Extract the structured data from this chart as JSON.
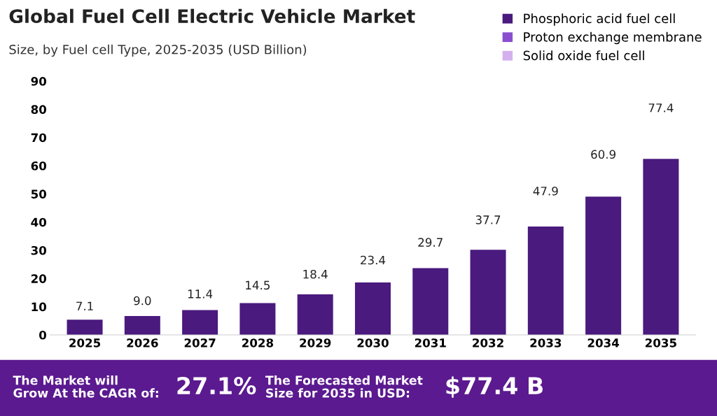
{
  "chart_data": {
    "type": "bar",
    "title": "Global Fuel Cell Electric Vehicle Market",
    "subtitle": "Size, by Fuel cell Type, 2025-2035 (USD Billion)",
    "categories": [
      "2025",
      "2026",
      "2027",
      "2028",
      "2029",
      "2030",
      "2031",
      "2032",
      "2033",
      "2034",
      "2035"
    ],
    "series": [
      {
        "name": "Phosphoric acid fuel cell",
        "color": "#4a1a7e",
        "values": [
          5.4,
          6.7,
          8.8,
          11.3,
          14.4,
          18.6,
          23.7,
          30.2,
          38.4,
          49.0,
          62.4
        ]
      },
      {
        "name": "Proton exchange membrane",
        "color": "#8a4fd0",
        "values": [
          null,
          null,
          null,
          null,
          null,
          null,
          null,
          null,
          null,
          null,
          null
        ]
      },
      {
        "name": "Solid oxide fuel cell",
        "color": "#d4b0ee",
        "values": [
          null,
          null,
          null,
          null,
          null,
          null,
          null,
          null,
          null,
          null,
          null
        ]
      }
    ],
    "ylim": [
      0,
      90
    ],
    "yticks": [
      0,
      10,
      20,
      30,
      40,
      50,
      60,
      70,
      80,
      90
    ],
    "grid": false,
    "legend": "top right",
    "annotations": [
      "7.1",
      "9.0",
      "11.4",
      "14.5",
      "18.4",
      "23.4",
      "29.7",
      "37.7",
      "47.9",
      "60.9",
      "77.4",
      "The Market will Grow At the CAGR of:",
      "27.1%",
      "The Forecasted Market Size for 2035 in USD:",
      "$77.4 B"
    ]
  }
}
